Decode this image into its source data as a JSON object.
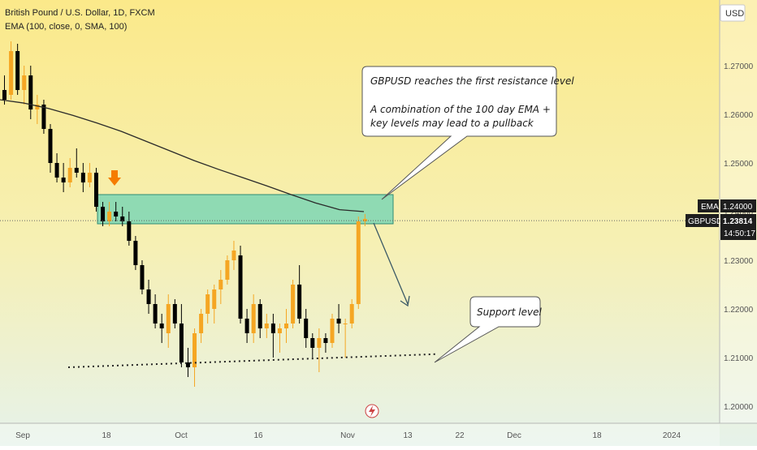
{
  "header": {
    "symbol_title": "British Pound / U.S. Dollar, 1D, FXCM",
    "indicator": "EMA (100, close, 0, SMA, 100)"
  },
  "price_axis": {
    "currency": "USD",
    "ticks": [
      "1.27000",
      "1.26000",
      "1.25000",
      "1.24000",
      "1.23000",
      "1.22000",
      "1.21000",
      "1.20000"
    ],
    "tick_values": [
      1.27,
      1.26,
      1.25,
      1.24,
      1.23,
      1.22,
      1.21,
      1.2
    ]
  },
  "time_axis": {
    "ticks": [
      "Sep",
      "18",
      "Oct",
      "16",
      "Nov",
      "13",
      "22",
      "Dec",
      "18",
      "2024"
    ]
  },
  "labels": {
    "ema_tag": "EMA",
    "ema_value": "1.24000",
    "symbol_tag": "GBPUSD",
    "price_value": "1.23814",
    "countdown": "14:50:17"
  },
  "annotations": {
    "callout_resistance": {
      "line1": "GBPUSD reaches the first resistance level",
      "line2": "A combination of the 100 day EMA +",
      "line3": "key levels may lead to a pullback"
    },
    "callout_support": "Support level"
  },
  "colors": {
    "up_candle": "#f5a623",
    "down_candle": "#000000",
    "ema_line": "#2a2a2a",
    "zone_fill": "#66d1b6",
    "arrow_marker": "#f57c00",
    "bg_top": "#fbe98a",
    "bg_bottom": "#e7f3ea"
  },
  "chart_data": {
    "type": "candlestick",
    "ylim": [
      1.1965,
      1.2835
    ],
    "current_price": 1.23814,
    "resistance_zone": {
      "low": 1.2375,
      "high": 1.2435
    },
    "support_line": {
      "from": 1.208,
      "to": 1.2107
    },
    "candles": [
      {
        "o": 1.265,
        "h": 1.268,
        "l": 1.262,
        "c": 1.263
      },
      {
        "o": 1.264,
        "h": 1.275,
        "l": 1.263,
        "c": 1.273
      },
      {
        "o": 1.273,
        "h": 1.2745,
        "l": 1.264,
        "c": 1.265
      },
      {
        "o": 1.265,
        "h": 1.27,
        "l": 1.262,
        "c": 1.268
      },
      {
        "o": 1.268,
        "h": 1.27,
        "l": 1.259,
        "c": 1.261
      },
      {
        "o": 1.261,
        "h": 1.264,
        "l": 1.258,
        "c": 1.262
      },
      {
        "o": 1.262,
        "h": 1.263,
        "l": 1.256,
        "c": 1.257
      },
      {
        "o": 1.257,
        "h": 1.258,
        "l": 1.248,
        "c": 1.25
      },
      {
        "o": 1.25,
        "h": 1.252,
        "l": 1.246,
        "c": 1.247
      },
      {
        "o": 1.247,
        "h": 1.25,
        "l": 1.244,
        "c": 1.246
      },
      {
        "o": 1.246,
        "h": 1.251,
        "l": 1.245,
        "c": 1.249
      },
      {
        "o": 1.249,
        "h": 1.253,
        "l": 1.247,
        "c": 1.248
      },
      {
        "o": 1.248,
        "h": 1.25,
        "l": 1.244,
        "c": 1.246
      },
      {
        "o": 1.246,
        "h": 1.25,
        "l": 1.245,
        "c": 1.248
      },
      {
        "o": 1.248,
        "h": 1.249,
        "l": 1.24,
        "c": 1.241
      },
      {
        "o": 1.241,
        "h": 1.242,
        "l": 1.237,
        "c": 1.238
      },
      {
        "o": 1.238,
        "h": 1.242,
        "l": 1.237,
        "c": 1.24
      },
      {
        "o": 1.24,
        "h": 1.242,
        "l": 1.238,
        "c": 1.239
      },
      {
        "o": 1.239,
        "h": 1.241,
        "l": 1.237,
        "c": 1.238
      },
      {
        "o": 1.238,
        "h": 1.24,
        "l": 1.233,
        "c": 1.234
      },
      {
        "o": 1.234,
        "h": 1.235,
        "l": 1.228,
        "c": 1.229
      },
      {
        "o": 1.229,
        "h": 1.23,
        "l": 1.223,
        "c": 1.224
      },
      {
        "o": 1.224,
        "h": 1.226,
        "l": 1.219,
        "c": 1.221
      },
      {
        "o": 1.221,
        "h": 1.223,
        "l": 1.216,
        "c": 1.217
      },
      {
        "o": 1.217,
        "h": 1.219,
        "l": 1.213,
        "c": 1.216
      },
      {
        "o": 1.215,
        "h": 1.223,
        "l": 1.212,
        "c": 1.221
      },
      {
        "o": 1.221,
        "h": 1.222,
        "l": 1.216,
        "c": 1.217
      },
      {
        "o": 1.217,
        "h": 1.221,
        "l": 1.208,
        "c": 1.209
      },
      {
        "o": 1.209,
        "h": 1.212,
        "l": 1.206,
        "c": 1.208
      },
      {
        "o": 1.208,
        "h": 1.216,
        "l": 1.204,
        "c": 1.215
      },
      {
        "o": 1.215,
        "h": 1.22,
        "l": 1.213,
        "c": 1.219
      },
      {
        "o": 1.219,
        "h": 1.224,
        "l": 1.217,
        "c": 1.223
      },
      {
        "o": 1.22,
        "h": 1.225,
        "l": 1.217,
        "c": 1.224
      },
      {
        "o": 1.224,
        "h": 1.228,
        "l": 1.221,
        "c": 1.226
      },
      {
        "o": 1.226,
        "h": 1.231,
        "l": 1.225,
        "c": 1.23
      },
      {
        "o": 1.23,
        "h": 1.234,
        "l": 1.228,
        "c": 1.232
      },
      {
        "o": 1.231,
        "h": 1.233,
        "l": 1.217,
        "c": 1.218
      },
      {
        "o": 1.218,
        "h": 1.22,
        "l": 1.213,
        "c": 1.215
      },
      {
        "o": 1.215,
        "h": 1.223,
        "l": 1.213,
        "c": 1.221
      },
      {
        "o": 1.221,
        "h": 1.222,
        "l": 1.214,
        "c": 1.216
      },
      {
        "o": 1.216,
        "h": 1.219,
        "l": 1.214,
        "c": 1.217
      },
      {
        "o": 1.217,
        "h": 1.219,
        "l": 1.21,
        "c": 1.215
      },
      {
        "o": 1.215,
        "h": 1.217,
        "l": 1.211,
        "c": 1.216
      },
      {
        "o": 1.216,
        "h": 1.22,
        "l": 1.213,
        "c": 1.217
      },
      {
        "o": 1.217,
        "h": 1.226,
        "l": 1.216,
        "c": 1.225
      },
      {
        "o": 1.225,
        "h": 1.229,
        "l": 1.217,
        "c": 1.218
      },
      {
        "o": 1.218,
        "h": 1.22,
        "l": 1.212,
        "c": 1.214
      },
      {
        "o": 1.214,
        "h": 1.215,
        "l": 1.21,
        "c": 1.212
      },
      {
        "o": 1.212,
        "h": 1.216,
        "l": 1.207,
        "c": 1.214
      },
      {
        "o": 1.214,
        "h": 1.215,
        "l": 1.211,
        "c": 1.213
      },
      {
        "o": 1.213,
        "h": 1.219,
        "l": 1.212,
        "c": 1.218
      },
      {
        "o": 1.218,
        "h": 1.221,
        "l": 1.215,
        "c": 1.217
      },
      {
        "o": 1.217,
        "h": 1.218,
        "l": 1.21,
        "c": 1.217
      },
      {
        "o": 1.217,
        "h": 1.222,
        "l": 1.216,
        "c": 1.221
      },
      {
        "o": 1.221,
        "h": 1.239,
        "l": 1.22,
        "c": 1.238
      },
      {
        "o": 1.238,
        "h": 1.2395,
        "l": 1.237,
        "c": 1.2385
      }
    ],
    "ema": [
      1.263,
      1.2623,
      1.2612,
      1.2598,
      1.2582,
      1.2565,
      1.2545,
      1.2525,
      1.2505,
      1.2487,
      1.247,
      1.2453,
      1.2435,
      1.2418,
      1.2404,
      1.24
    ]
  }
}
